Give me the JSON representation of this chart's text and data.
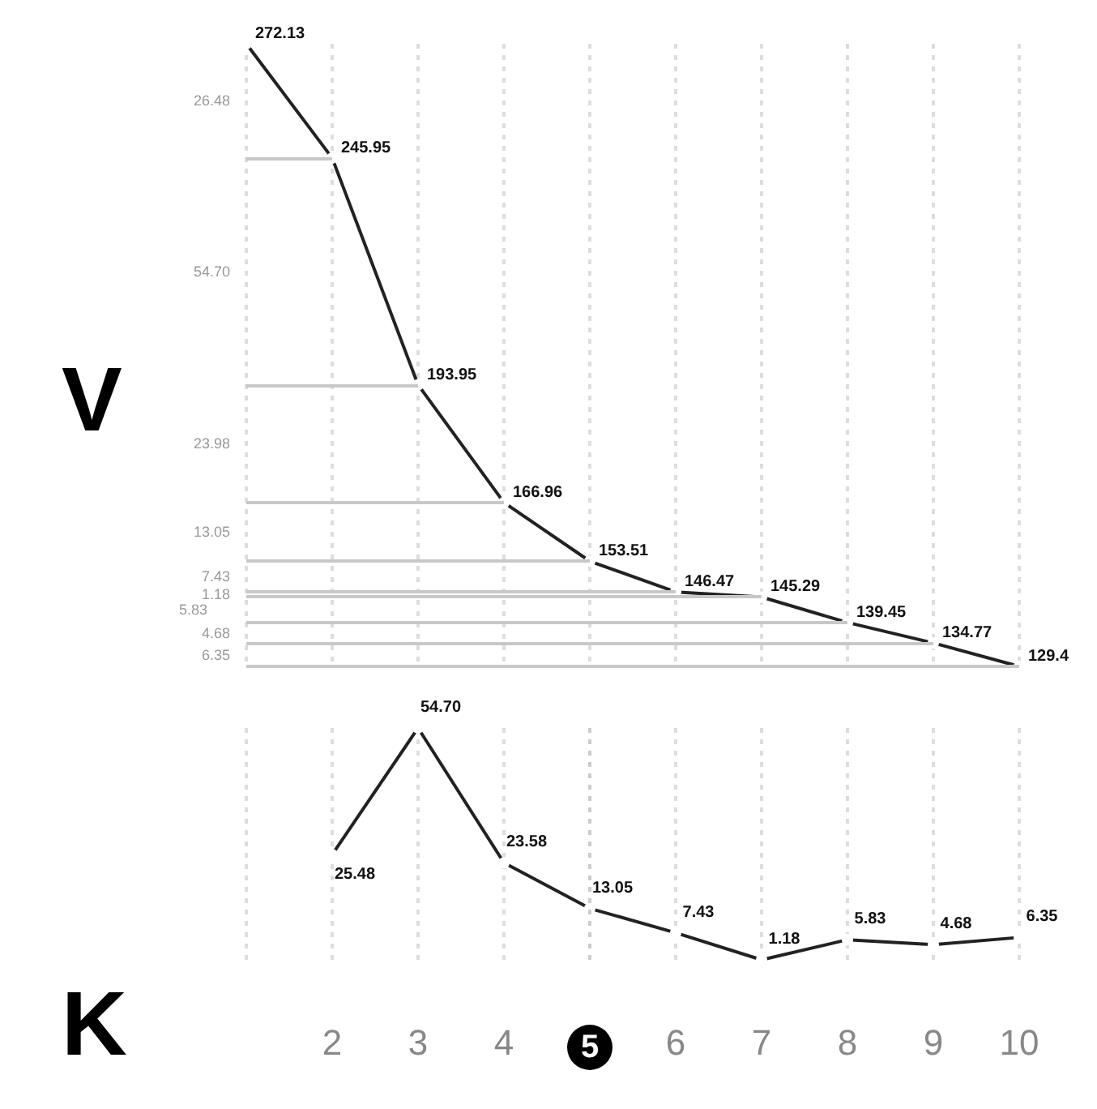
{
  "chart_data": [
    {
      "type": "line",
      "ylabel": "V",
      "categories": [
        null,
        "2",
        "3",
        "4",
        "5",
        "6",
        "7",
        "8",
        "9",
        "10"
      ],
      "series": [
        {
          "color": "#222222",
          "values": [
            272.13,
            245.95,
            193.95,
            166.96,
            153.51,
            146.47,
            145.29,
            139.45,
            134.77,
            129.4
          ]
        }
      ],
      "annotations": [
        "26.48",
        "54.70",
        "23.98",
        "13.05",
        "7.43",
        "1.18",
        "5.83",
        "4.68",
        "6.35"
      ],
      "ref_lines": [
        {
          "axis": "y",
          "value": 245.95,
          "color": "#c8c8c8"
        },
        {
          "axis": "y",
          "value": 193.95,
          "color": "#c8c8c8"
        },
        {
          "axis": "y",
          "value": 166.96,
          "color": "#c8c8c8"
        },
        {
          "axis": "y",
          "value": 153.51,
          "color": "#c8c8c8"
        },
        {
          "axis": "y",
          "value": 146.47,
          "color": "#c8c8c8"
        },
        {
          "axis": "y",
          "value": 145.29,
          "color": "#c8c8c8"
        },
        {
          "axis": "y",
          "value": 139.45,
          "color": "#c8c8c8"
        },
        {
          "axis": "y",
          "value": 134.77,
          "color": "#c8c8c8"
        },
        {
          "axis": "y",
          "value": 129.4,
          "color": "#c8c8c8"
        }
      ],
      "data_labels": true,
      "grid": "x",
      "marker": "circle",
      "line_style": "solid",
      "tick_labels": false
    },
    {
      "type": "line",
      "xlabel": "K",
      "categories": [
        null,
        "2",
        "3",
        "4",
        "5",
        "6",
        "7",
        "8",
        "9",
        "10"
      ],
      "series": [
        {
          "color": "#222222",
          "values": [
            null,
            25.48,
            54.7,
            23.58,
            13.05,
            7.43,
            1.18,
            5.83,
            4.68,
            6.35
          ],
          "value_labels": [
            null,
            "25.48",
            "54.70",
            "23.58",
            "13.05",
            "7.43",
            "1.18",
            "5.83",
            "4.68",
            "6.35"
          ]
        }
      ],
      "ref_lines": [
        {
          "axis": "x",
          "value": "5"
        }
      ],
      "grid": "x",
      "marker": "circle",
      "line_style": "solid",
      "tick_labels": "x"
    }
  ]
}
